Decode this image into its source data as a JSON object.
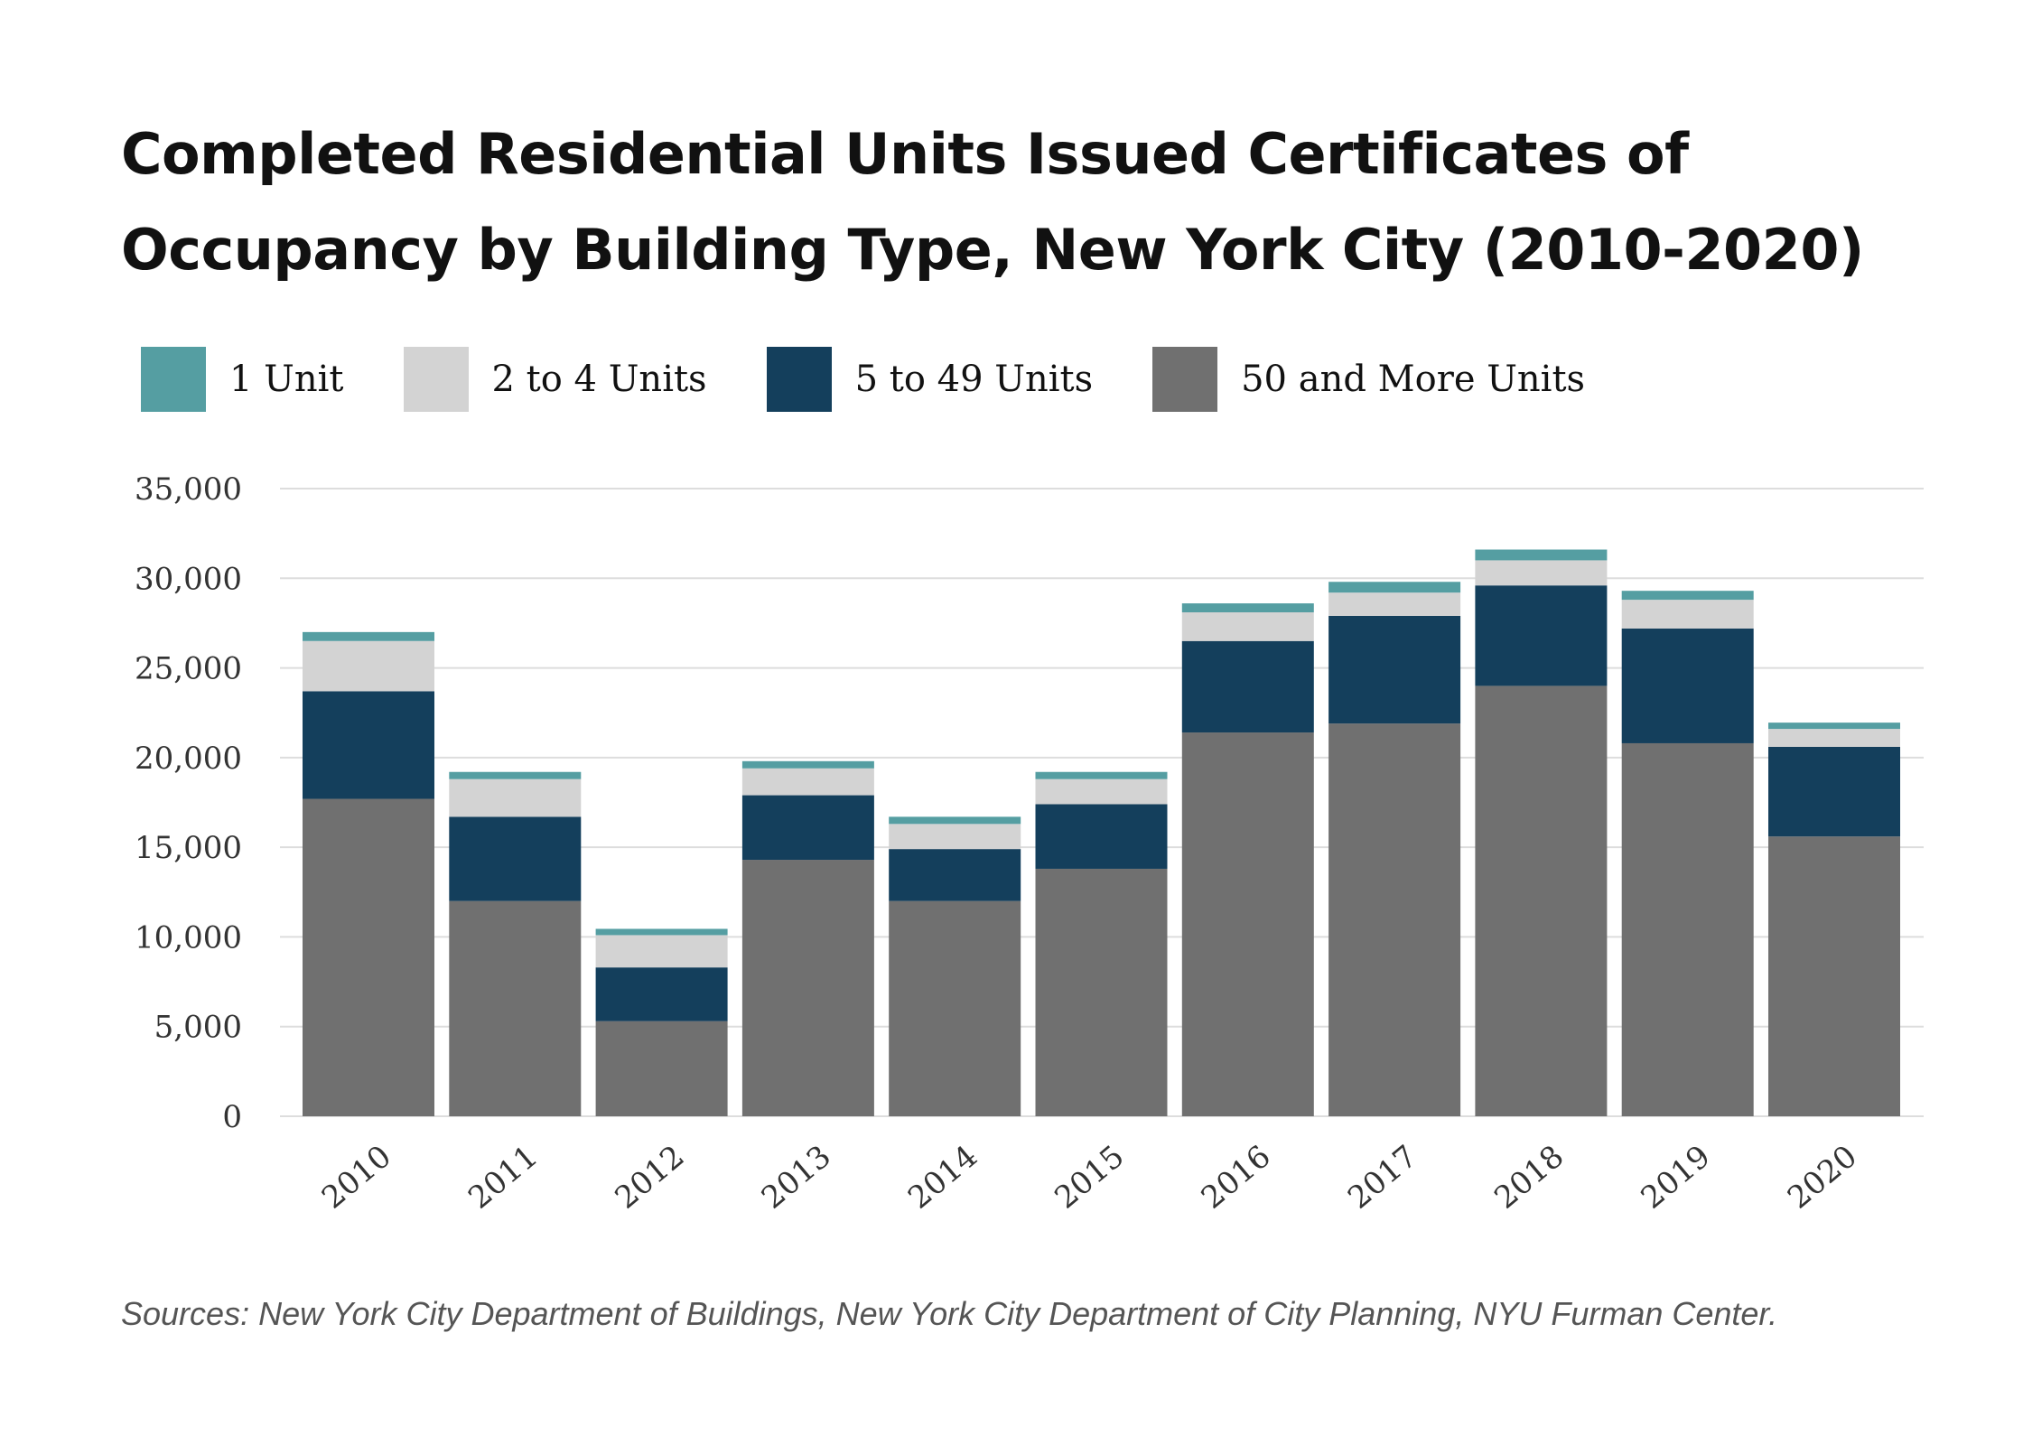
{
  "chart_data": {
    "type": "bar",
    "stacked": true,
    "title": "Completed Residential Units Issued Certificates of Occupancy by Building Type, New York City (2010-2020)",
    "categories": [
      "2010",
      "2011",
      "2012",
      "2013",
      "2014",
      "2015",
      "2016",
      "2017",
      "2018",
      "2019",
      "2020"
    ],
    "series": [
      {
        "name": "50 and More Units",
        "color": "#707070",
        "values": [
          17700,
          12000,
          5300,
          14300,
          12000,
          13800,
          21400,
          21900,
          24000,
          20800,
          15600
        ]
      },
      {
        "name": "5 to 49 Units",
        "color": "#143f5c",
        "values": [
          6000,
          4700,
          3000,
          3600,
          2900,
          3600,
          5100,
          6000,
          5600,
          6400,
          5000
        ]
      },
      {
        "name": "2 to 4 Units",
        "color": "#d3d3d3",
        "values": [
          2800,
          2100,
          1800,
          1500,
          1400,
          1400,
          1600,
          1300,
          1400,
          1600,
          1000
        ]
      },
      {
        "name": "1 Unit",
        "color": "#559ea2",
        "values": [
          500,
          400,
          350,
          400,
          400,
          400,
          500,
          600,
          600,
          500,
          350
        ]
      }
    ],
    "legend": [
      "1 Unit",
      "2 to 4 Units",
      "5 to 49 Units",
      "50 and More Units"
    ],
    "legend_colors": [
      "#559ea2",
      "#d3d3d3",
      "#143f5c",
      "#707070"
    ],
    "ylim": [
      0,
      35000
    ],
    "yticks": [
      0,
      5000,
      10000,
      15000,
      20000,
      25000,
      30000,
      35000
    ],
    "ytick_labels": [
      "0",
      "5,000",
      "10,000",
      "15,000",
      "20,000",
      "25,000",
      "30,000",
      "35,000"
    ],
    "grid": true,
    "legend_position": "top-left",
    "xlabel": "",
    "ylabel": "",
    "source": "Sources: New York City Department of Buildings, New York City Department of City Planning, NYU Furman Center."
  }
}
